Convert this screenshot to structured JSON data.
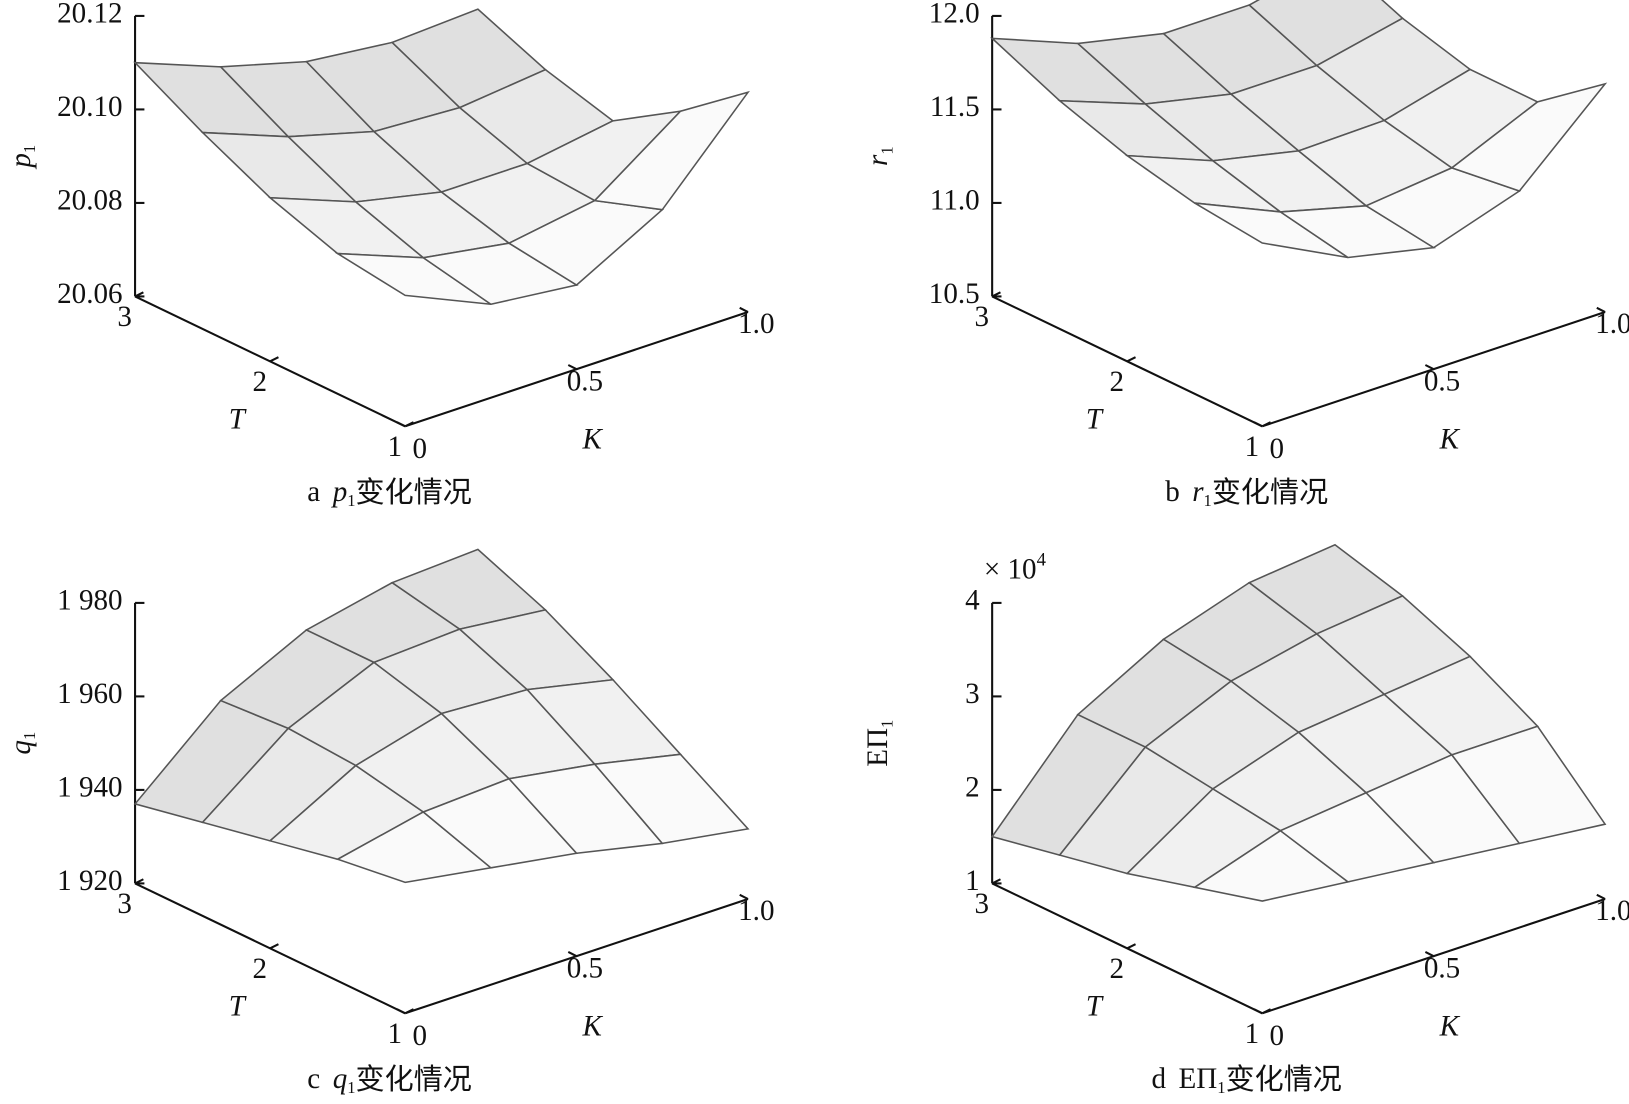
{
  "chart_data": [
    {
      "type": "surface",
      "xlabel": "K",
      "ylabel": "T",
      "zlabel": {
        "text": "p",
        "subscript": "1",
        "italic": true
      },
      "caption": {
        "letter": "a",
        "symbol": "p",
        "subscript": "1",
        "text": "变化情况",
        "italic": true
      },
      "x": [
        0,
        0.25,
        0.5,
        0.75,
        1
      ],
      "y": [
        1,
        1.5,
        2,
        2.5,
        3
      ],
      "z": [
        [
          20.088,
          20.08,
          20.078,
          20.088,
          20.107
        ],
        [
          20.09,
          20.083,
          20.08,
          20.083,
          20.096
        ],
        [
          20.095,
          20.088,
          20.084,
          20.084,
          20.087
        ],
        [
          20.102,
          20.095,
          20.09,
          20.089,
          20.091
        ],
        [
          20.11,
          20.103,
          20.098,
          20.096,
          20.097
        ]
      ],
      "xlim": [
        0,
        1
      ],
      "ylim": [
        1,
        3
      ],
      "zlim": [
        20.06,
        20.12
      ],
      "xticks": [
        0,
        0.5,
        {
          "value": 1,
          "label": "1.0"
        }
      ],
      "yticks": [
        1,
        2,
        3
      ],
      "zticks": [
        20.06,
        20.08,
        {
          "value": 20.1,
          "label": "20.10"
        },
        20.12
      ]
    },
    {
      "type": "surface",
      "xlabel": "K",
      "ylabel": "T",
      "zlabel": {
        "text": "r",
        "subscript": "1",
        "italic": true
      },
      "caption": {
        "letter": "b",
        "symbol": "r",
        "subscript": "1",
        "text": "变化情况",
        "italic": true
      },
      "x": [
        0,
        0.25,
        0.5,
        0.75,
        1
      ],
      "y": [
        1,
        1.5,
        2,
        2.5,
        3
      ],
      "z": [
        [
          11.48,
          11.25,
          11.15,
          11.3,
          11.72
        ],
        [
          11.52,
          11.32,
          11.2,
          11.25,
          11.45
        ],
        [
          11.6,
          11.42,
          11.32,
          11.33,
          11.45
        ],
        [
          11.72,
          11.55,
          11.45,
          11.45,
          11.55
        ],
        [
          11.88,
          11.7,
          11.6,
          11.6,
          11.7
        ]
      ],
      "xlim": [
        0,
        1
      ],
      "ylim": [
        1,
        3
      ],
      "zlim": [
        10.5,
        12
      ],
      "xticks": [
        0,
        0.5,
        {
          "value": 1,
          "label": "1.0"
        }
      ],
      "yticks": [
        1,
        2,
        3
      ],
      "zticks": [
        10.5,
        {
          "value": 11,
          "label": "11.0"
        },
        11.5,
        {
          "value": 12,
          "label": "12.0"
        }
      ]
    },
    {
      "type": "surface",
      "xlabel": "K",
      "ylabel": "T",
      "zlabel": {
        "text": "q",
        "subscript": "1",
        "italic": true
      },
      "caption": {
        "letter": "c",
        "symbol": "q",
        "subscript": "1",
        "text": "变化情况",
        "italic": true
      },
      "x": [
        0,
        0.25,
        0.5,
        0.75,
        1
      ],
      "y": [
        1,
        1.5,
        2,
        2.5,
        3
      ],
      "z": [
        [
          1948,
          1945,
          1942,
          1938,
          1935
        ],
        [
          1946,
          1950,
          1951,
          1948,
          1944
        ],
        [
          1943,
          1953,
          1958,
          1957,
          1953
        ],
        [
          1940,
          1954,
          1962,
          1963,
          1961
        ],
        [
          1937,
          1953,
          1962,
          1966,
          1967
        ]
      ],
      "xlim": [
        0,
        1
      ],
      "ylim": [
        1,
        3
      ],
      "zlim": [
        1920,
        1980
      ],
      "xticks": [
        0,
        0.5,
        {
          "value": 1,
          "label": "1.0"
        }
      ],
      "yticks": [
        1,
        2,
        3
      ],
      "zticks": [
        {
          "value": 1920,
          "label": "1 920"
        },
        {
          "value": 1940,
          "label": "1 940"
        },
        {
          "value": 1960,
          "label": "1 960"
        },
        {
          "value": 1980,
          "label": "1 980"
        }
      ]
    },
    {
      "type": "surface",
      "xlabel": "K",
      "ylabel": "T",
      "zlabel": {
        "text": "EΠ",
        "subscript": "1",
        "italic": false
      },
      "caption": {
        "letter": "d",
        "symbol": "EΠ",
        "subscript": "1",
        "text": "变化情况",
        "italic": false
      },
      "multiplier": {
        "text": "× 10",
        "superscript": "4"
      },
      "x": [
        0,
        0.25,
        0.5,
        0.75,
        1
      ],
      "y": [
        1,
        1.5,
        2,
        2.5,
        3
      ],
      "z": [
        [
          2.2,
          2.1,
          2.0,
          1.9,
          1.8
        ],
        [
          2.0,
          2.3,
          2.4,
          2.5,
          2.5
        ],
        [
          1.8,
          2.4,
          2.7,
          2.8,
          2.9
        ],
        [
          1.65,
          2.5,
          2.9,
          3.1,
          3.2
        ],
        [
          1.5,
          2.5,
          3.0,
          3.3,
          3.4
        ]
      ],
      "xlim": [
        0,
        1
      ],
      "ylim": [
        1,
        3
      ],
      "zlim": [
        1,
        4
      ],
      "xticks": [
        0,
        0.5,
        {
          "value": 1,
          "label": "1.0"
        }
      ],
      "yticks": [
        1,
        2,
        3
      ],
      "zticks": [
        1,
        2,
        3,
        4
      ]
    }
  ]
}
